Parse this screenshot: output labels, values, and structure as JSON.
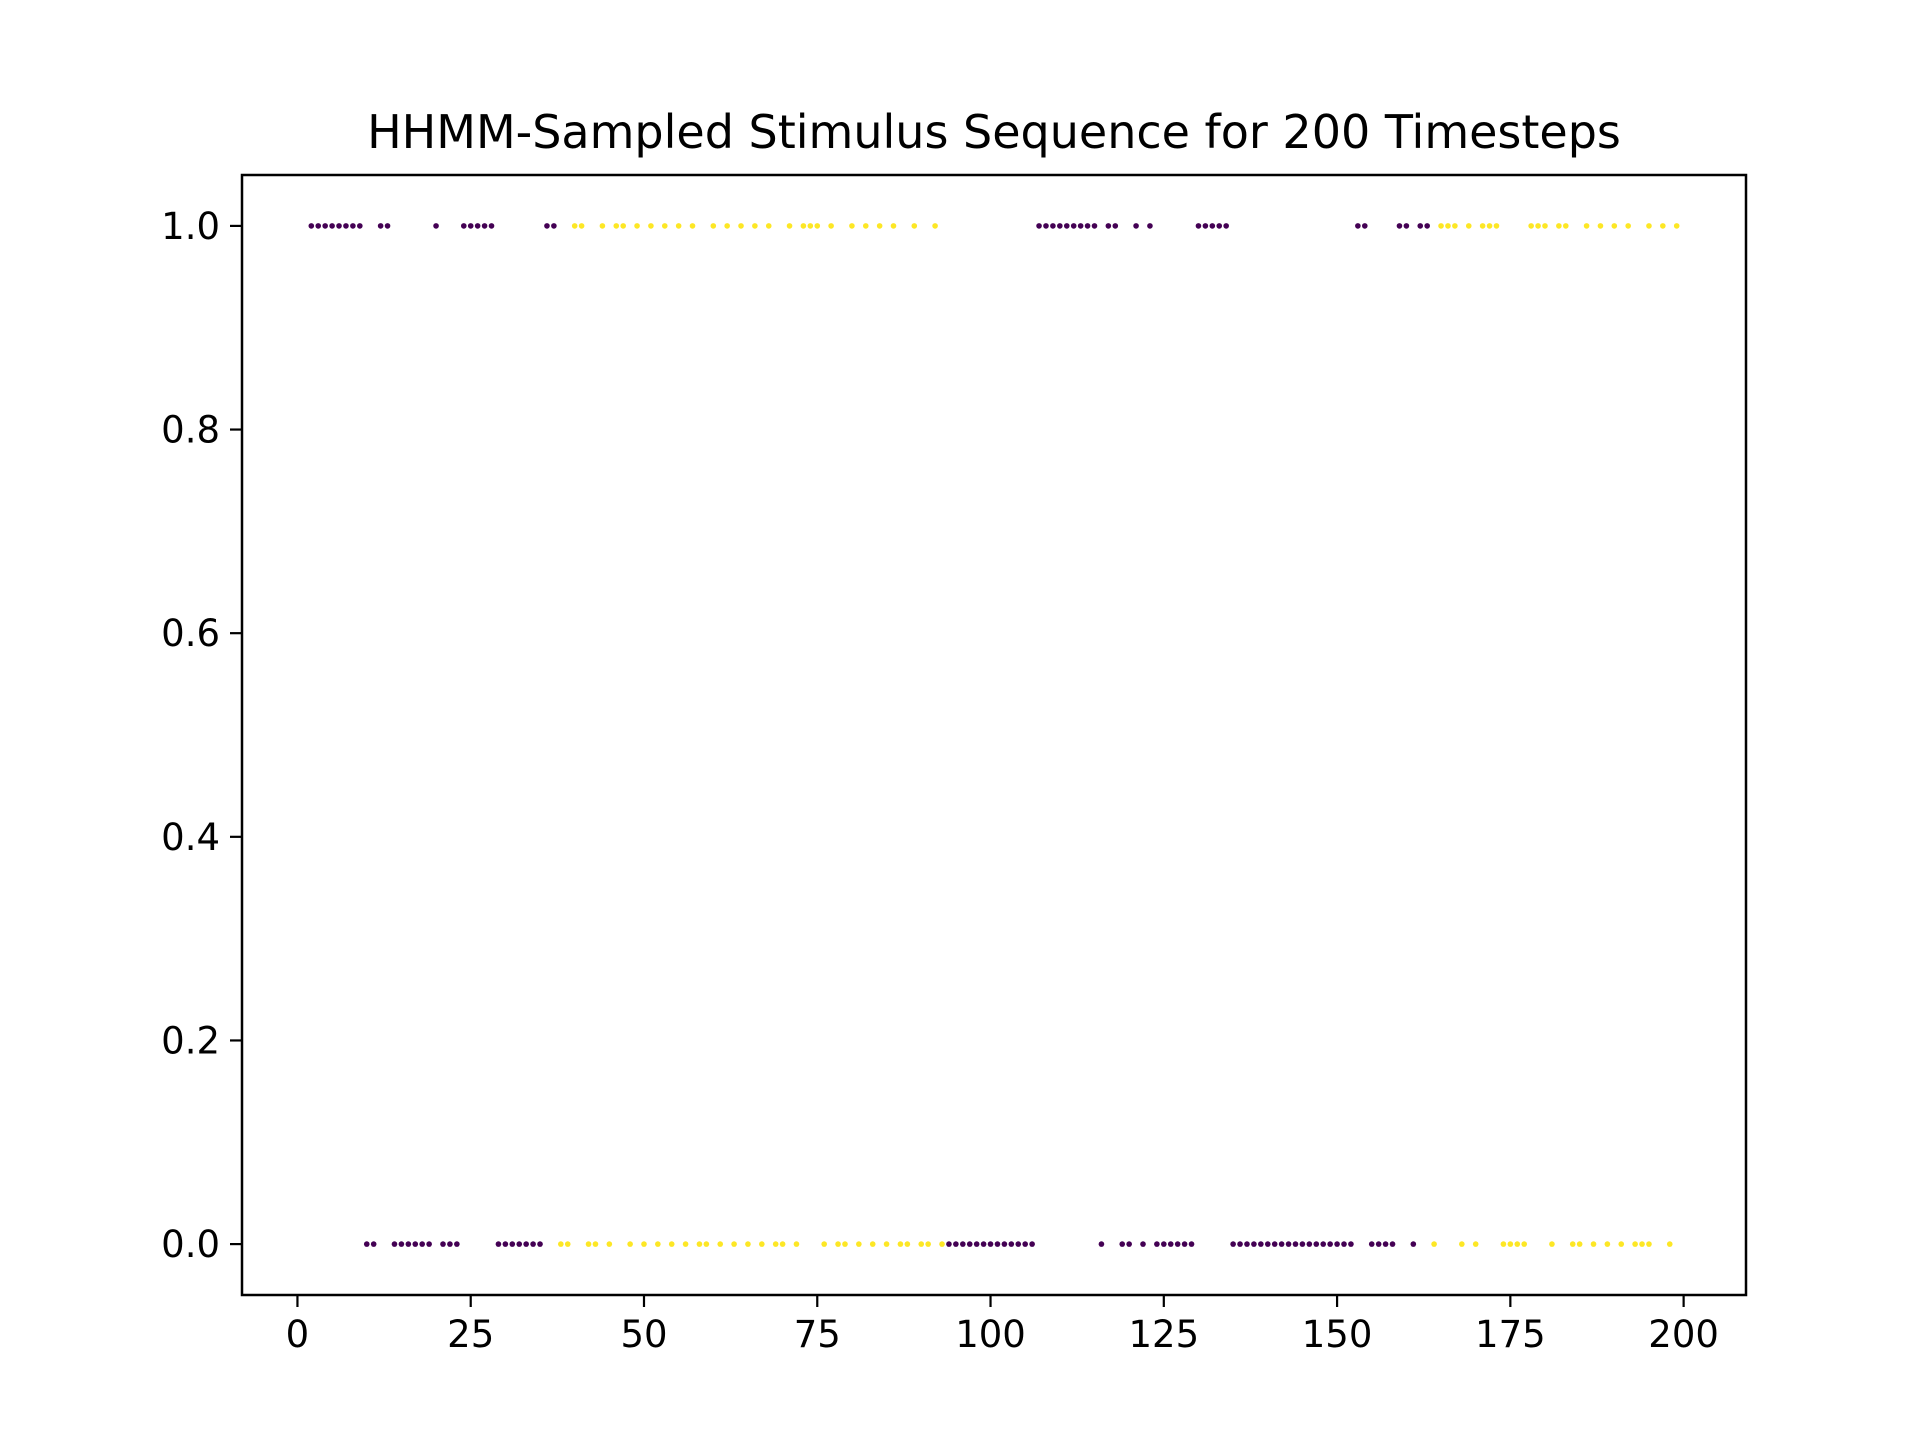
{
  "chart_data": {
    "type": "scatter",
    "title": "HHMM-Sampled Stimulus Sequence for 200 Timesteps",
    "xlabel": "",
    "ylabel": "",
    "xlim": [
      -8,
      209
    ],
    "ylim": [
      -0.05,
      1.05
    ],
    "grid": false,
    "x_ticks": [
      0,
      25,
      50,
      75,
      100,
      125,
      150,
      175,
      200
    ],
    "x_tick_labels": [
      "0",
      "25",
      "50",
      "75",
      "100",
      "125",
      "150",
      "175",
      "200"
    ],
    "y_ticks": [
      0.0,
      0.2,
      0.4,
      0.6,
      0.8,
      1.0
    ],
    "y_tick_labels": [
      "0.0",
      "0.2",
      "0.4",
      "0.6",
      "0.8",
      "1.0"
    ],
    "colors": {
      "state_0": "#440154",
      "state_1": "#fde725"
    },
    "series": [
      {
        "color": "#440154",
        "points": [
          [
            2,
            1
          ],
          [
            3,
            1
          ],
          [
            4,
            1
          ],
          [
            5,
            1
          ],
          [
            6,
            1
          ],
          [
            7,
            1
          ],
          [
            8,
            1
          ],
          [
            9,
            1
          ],
          [
            12,
            1
          ],
          [
            13,
            1
          ],
          [
            20,
            1
          ],
          [
            24,
            1
          ],
          [
            25,
            1
          ],
          [
            26,
            1
          ],
          [
            27,
            1
          ],
          [
            28,
            1
          ],
          [
            36,
            1
          ],
          [
            37,
            1
          ],
          [
            107,
            1
          ],
          [
            108,
            1
          ],
          [
            109,
            1
          ],
          [
            110,
            1
          ],
          [
            111,
            1
          ],
          [
            112,
            1
          ],
          [
            113,
            1
          ],
          [
            114,
            1
          ],
          [
            115,
            1
          ],
          [
            117,
            1
          ],
          [
            118,
            1
          ],
          [
            121,
            1
          ],
          [
            123,
            1
          ],
          [
            130,
            1
          ],
          [
            131,
            1
          ],
          [
            132,
            1
          ],
          [
            133,
            1
          ],
          [
            134,
            1
          ],
          [
            153,
            1
          ],
          [
            154,
            1
          ],
          [
            159,
            1
          ],
          [
            160,
            1
          ],
          [
            162,
            1
          ],
          [
            163,
            1
          ],
          [
            10,
            0
          ],
          [
            11,
            0
          ],
          [
            14,
            0
          ],
          [
            15,
            0
          ],
          [
            16,
            0
          ],
          [
            17,
            0
          ],
          [
            18,
            0
          ],
          [
            19,
            0
          ],
          [
            21,
            0
          ],
          [
            22,
            0
          ],
          [
            23,
            0
          ],
          [
            29,
            0
          ],
          [
            30,
            0
          ],
          [
            31,
            0
          ],
          [
            32,
            0
          ],
          [
            33,
            0
          ],
          [
            34,
            0
          ],
          [
            35,
            0
          ],
          [
            94,
            0
          ],
          [
            95,
            0
          ],
          [
            96,
            0
          ],
          [
            97,
            0
          ],
          [
            98,
            0
          ],
          [
            99,
            0
          ],
          [
            100,
            0
          ],
          [
            101,
            0
          ],
          [
            102,
            0
          ],
          [
            103,
            0
          ],
          [
            104,
            0
          ],
          [
            105,
            0
          ],
          [
            106,
            0
          ],
          [
            116,
            0
          ],
          [
            119,
            0
          ],
          [
            120,
            0
          ],
          [
            122,
            0
          ],
          [
            124,
            0
          ],
          [
            125,
            0
          ],
          [
            126,
            0
          ],
          [
            127,
            0
          ],
          [
            128,
            0
          ],
          [
            129,
            0
          ],
          [
            135,
            0
          ],
          [
            136,
            0
          ],
          [
            137,
            0
          ],
          [
            138,
            0
          ],
          [
            139,
            0
          ],
          [
            140,
            0
          ],
          [
            141,
            0
          ],
          [
            142,
            0
          ],
          [
            143,
            0
          ],
          [
            144,
            0
          ],
          [
            145,
            0
          ],
          [
            146,
            0
          ],
          [
            147,
            0
          ],
          [
            148,
            0
          ],
          [
            149,
            0
          ],
          [
            150,
            0
          ],
          [
            151,
            0
          ],
          [
            152,
            0
          ],
          [
            155,
            0
          ],
          [
            156,
            0
          ],
          [
            157,
            0
          ],
          [
            158,
            0
          ],
          [
            161,
            0
          ]
        ]
      },
      {
        "color": "#fde725",
        "points": [
          [
            40,
            1
          ],
          [
            41,
            1
          ],
          [
            44,
            1
          ],
          [
            46,
            1
          ],
          [
            47,
            1
          ],
          [
            49,
            1
          ],
          [
            51,
            1
          ],
          [
            53,
            1
          ],
          [
            55,
            1
          ],
          [
            57,
            1
          ],
          [
            60,
            1
          ],
          [
            62,
            1
          ],
          [
            64,
            1
          ],
          [
            66,
            1
          ],
          [
            68,
            1
          ],
          [
            71,
            1
          ],
          [
            73,
            1
          ],
          [
            74,
            1
          ],
          [
            75,
            1
          ],
          [
            77,
            1
          ],
          [
            80,
            1
          ],
          [
            82,
            1
          ],
          [
            84,
            1
          ],
          [
            86,
            1
          ],
          [
            89,
            1
          ],
          [
            92,
            1
          ],
          [
            165,
            1
          ],
          [
            166,
            1
          ],
          [
            167,
            1
          ],
          [
            169,
            1
          ],
          [
            171,
            1
          ],
          [
            172,
            1
          ],
          [
            173,
            1
          ],
          [
            178,
            1
          ],
          [
            179,
            1
          ],
          [
            180,
            1
          ],
          [
            182,
            1
          ],
          [
            183,
            1
          ],
          [
            186,
            1
          ],
          [
            188,
            1
          ],
          [
            190,
            1
          ],
          [
            192,
            1
          ],
          [
            195,
            1
          ],
          [
            197,
            1
          ],
          [
            199,
            1
          ],
          [
            38,
            0
          ],
          [
            39,
            0
          ],
          [
            42,
            0
          ],
          [
            43,
            0
          ],
          [
            45,
            0
          ],
          [
            48,
            0
          ],
          [
            50,
            0
          ],
          [
            52,
            0
          ],
          [
            54,
            0
          ],
          [
            56,
            0
          ],
          [
            58,
            0
          ],
          [
            59,
            0
          ],
          [
            61,
            0
          ],
          [
            63,
            0
          ],
          [
            65,
            0
          ],
          [
            67,
            0
          ],
          [
            69,
            0
          ],
          [
            70,
            0
          ],
          [
            72,
            0
          ],
          [
            76,
            0
          ],
          [
            78,
            0
          ],
          [
            79,
            0
          ],
          [
            81,
            0
          ],
          [
            83,
            0
          ],
          [
            85,
            0
          ],
          [
            87,
            0
          ],
          [
            88,
            0
          ],
          [
            90,
            0
          ],
          [
            91,
            0
          ],
          [
            93,
            0
          ],
          [
            164,
            0
          ],
          [
            168,
            0
          ],
          [
            170,
            0
          ],
          [
            174,
            0
          ],
          [
            175,
            0
          ],
          [
            176,
            0
          ],
          [
            177,
            0
          ],
          [
            181,
            0
          ],
          [
            184,
            0
          ],
          [
            185,
            0
          ],
          [
            187,
            0
          ],
          [
            189,
            0
          ],
          [
            191,
            0
          ],
          [
            193,
            0
          ],
          [
            194,
            0
          ],
          [
            195,
            0
          ],
          [
            198,
            0
          ]
        ]
      }
    ]
  }
}
